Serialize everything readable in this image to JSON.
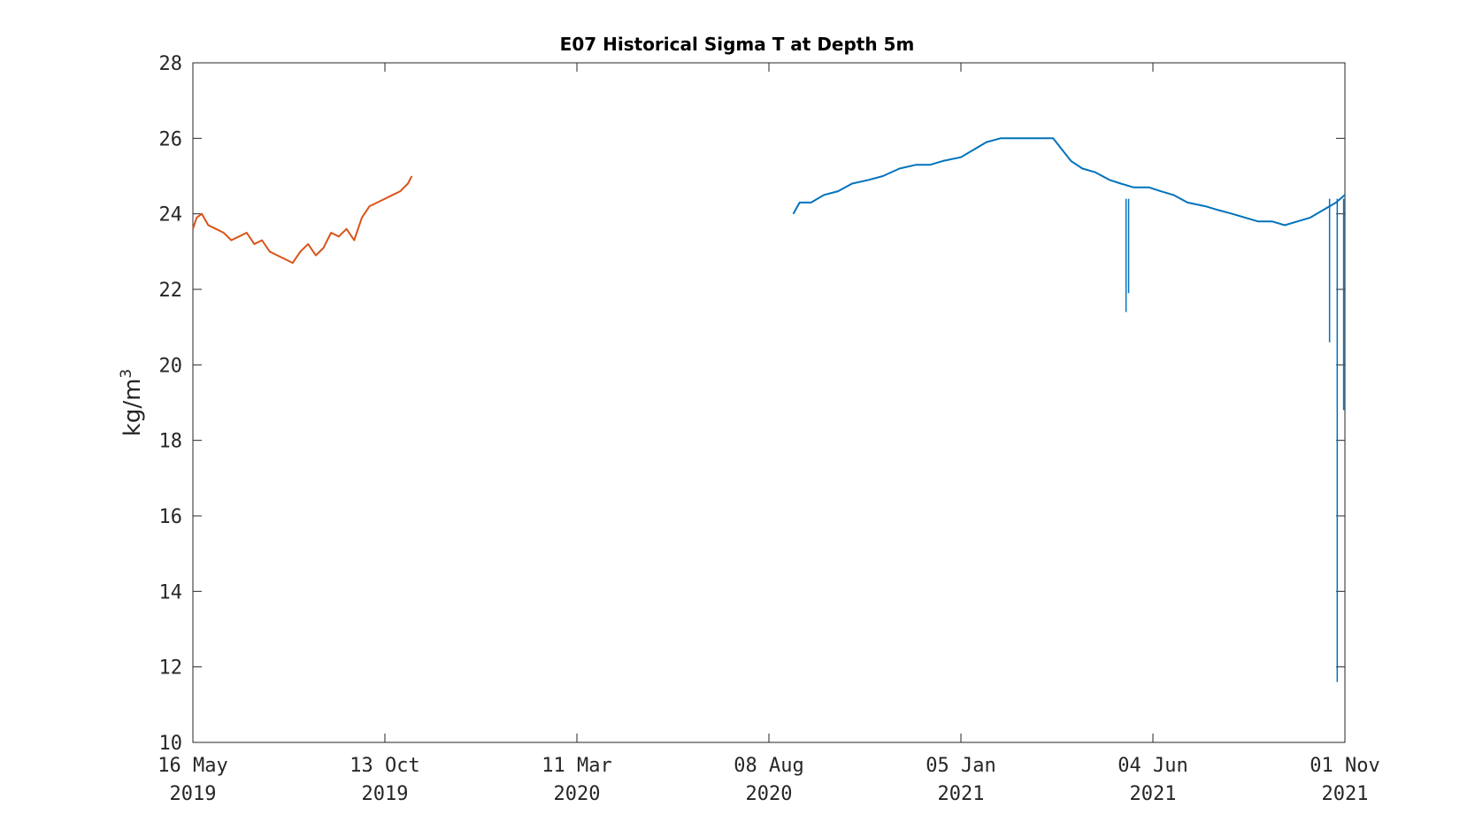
{
  "chart_data": {
    "type": "line",
    "title": "E07 Historical Sigma T at Depth 5m",
    "xlabel": "",
    "ylabel": "kg/m",
    "ylabel_superscript": "3",
    "ylim": [
      10,
      28
    ],
    "xlim": [
      "2019-05-16",
      "2021-11-01"
    ],
    "grid": false,
    "x_ticks": [
      {
        "date": "2019-05-16",
        "line1": "16 May",
        "line2": "2019"
      },
      {
        "date": "2019-10-13",
        "line1": "13 Oct",
        "line2": "2019"
      },
      {
        "date": "2020-03-11",
        "line1": "11 Mar",
        "line2": "2020"
      },
      {
        "date": "2020-08-08",
        "line1": "08 Aug",
        "line2": "2020"
      },
      {
        "date": "2021-01-05",
        "line1": "05 Jan",
        "line2": "2021"
      },
      {
        "date": "2021-06-04",
        "line1": "04 Jun",
        "line2": "2021"
      },
      {
        "date": "2021-11-01",
        "line1": "01 Nov",
        "line2": "2021"
      }
    ],
    "y_ticks": [
      10,
      12,
      14,
      16,
      18,
      20,
      22,
      24,
      26,
      28
    ],
    "series": [
      {
        "color": "#D95319",
        "x": [
          "2019-05-16",
          "2019-05-19",
          "2019-05-23",
          "2019-05-28",
          "2019-06-03",
          "2019-06-09",
          "2019-06-15",
          "2019-06-21",
          "2019-06-27",
          "2019-07-03",
          "2019-07-09",
          "2019-07-15",
          "2019-07-21",
          "2019-07-27",
          "2019-08-02",
          "2019-08-08",
          "2019-08-14",
          "2019-08-20",
          "2019-08-26",
          "2019-09-01",
          "2019-09-07",
          "2019-09-13",
          "2019-09-19",
          "2019-09-25",
          "2019-10-01",
          "2019-10-07",
          "2019-10-13",
          "2019-10-19",
          "2019-10-25",
          "2019-10-31",
          "2019-11-03"
        ],
        "y": [
          23.6,
          23.9,
          24.0,
          23.7,
          23.6,
          23.5,
          23.3,
          23.4,
          23.5,
          23.2,
          23.3,
          23.0,
          22.9,
          22.8,
          22.7,
          23.0,
          23.2,
          22.9,
          23.1,
          23.5,
          23.4,
          23.6,
          23.3,
          23.9,
          24.2,
          24.3,
          24.4,
          24.5,
          24.6,
          24.8,
          25.0
        ]
      },
      {
        "color": "#0072BD",
        "x": [
          "2020-08-27",
          "2020-09-01",
          "2020-09-10",
          "2020-09-20",
          "2020-10-01",
          "2020-10-12",
          "2020-10-25",
          "2020-11-05",
          "2020-11-18",
          "2020-12-01",
          "2020-12-12",
          "2020-12-22",
          "2021-01-05",
          "2021-01-15",
          "2021-01-25",
          "2021-02-05",
          "2021-02-15",
          "2021-02-25",
          "2021-03-10",
          "2021-03-18",
          "2021-03-25",
          "2021-04-01",
          "2021-04-10",
          "2021-04-20",
          "2021-05-01",
          "2021-05-10",
          "2021-05-20",
          "2021-06-01",
          "2021-06-10",
          "2021-06-20",
          "2021-07-01",
          "2021-07-15",
          "2021-07-25",
          "2021-08-05",
          "2021-08-15",
          "2021-08-25",
          "2021-09-05",
          "2021-09-15",
          "2021-09-25",
          "2021-10-05",
          "2021-10-15",
          "2021-10-25",
          "2021-11-01"
        ],
        "y": [
          24.0,
          24.3,
          24.3,
          24.5,
          24.6,
          24.8,
          24.9,
          25.0,
          25.2,
          25.3,
          25.3,
          25.4,
          25.5,
          25.7,
          25.9,
          26.0,
          26.0,
          26.0,
          26.0,
          26.0,
          25.7,
          25.4,
          25.2,
          25.1,
          24.9,
          24.8,
          24.7,
          24.7,
          24.6,
          24.5,
          24.3,
          24.2,
          24.1,
          24.0,
          23.9,
          23.8,
          23.8,
          23.7,
          23.8,
          23.9,
          24.1,
          24.3,
          24.5
        ]
      }
    ],
    "annotations_dips": [
      {
        "date": "2021-05-14",
        "y": 21.4
      },
      {
        "date": "2021-05-16",
        "y": 21.9
      },
      {
        "date": "2021-10-20",
        "y": 20.6
      },
      {
        "date": "2021-10-26",
        "y": 11.6
      },
      {
        "date": "2021-10-31",
        "y": 18.8
      }
    ]
  }
}
